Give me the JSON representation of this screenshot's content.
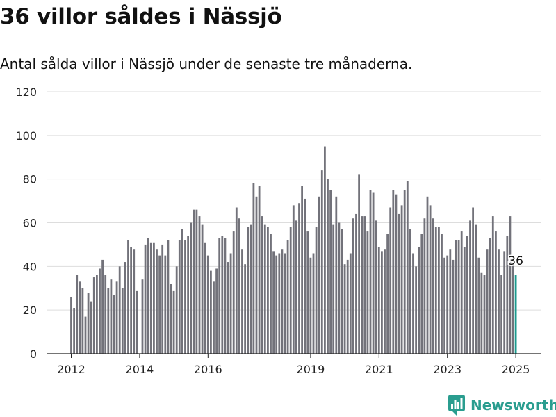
{
  "title": "36 villor såldes i Nässjö",
  "subtitle": "Antal sålda villor i Nässjö under de senaste tre månaderna.",
  "brand": {
    "name": "Newsworthy"
  },
  "colors": {
    "bar": "#72727a",
    "highlight": "#1b9a8e",
    "grid": "#dddddd",
    "brand": "#2a9d8f"
  },
  "chart_data": {
    "type": "bar",
    "ylim": [
      0,
      120
    ],
    "yticks": [
      0,
      20,
      40,
      60,
      80,
      100,
      120
    ],
    "grid": true,
    "xtick_labels": [
      "2012",
      "2014",
      "2016",
      "2019",
      "2021",
      "2023",
      "2025"
    ],
    "start": "2012-01",
    "end": "2025-01",
    "highlight_label": "36",
    "values": [
      26,
      21,
      36,
      33,
      30,
      17,
      28,
      24,
      35,
      36,
      39,
      43,
      36,
      30,
      34,
      27,
      33,
      40,
      30,
      42,
      52,
      49,
      48,
      29,
      0,
      34,
      50,
      53,
      51,
      51,
      48,
      45,
      50,
      45,
      52,
      32,
      29,
      40,
      52,
      57,
      52,
      54,
      60,
      66,
      66,
      63,
      59,
      51,
      45,
      38,
      33,
      39,
      53,
      54,
      53,
      42,
      46,
      56,
      67,
      62,
      48,
      41,
      58,
      59,
      78,
      72,
      77,
      63,
      59,
      58,
      55,
      47,
      45,
      46,
      48,
      46,
      52,
      58,
      68,
      61,
      69,
      77,
      71,
      56,
      44,
      46,
      58,
      72,
      84,
      95,
      80,
      75,
      59,
      72,
      60,
      57,
      41,
      43,
      46,
      62,
      64,
      82,
      63,
      63,
      56,
      75,
      74,
      61,
      49,
      47,
      48,
      55,
      67,
      75,
      73,
      64,
      68,
      75,
      79,
      57,
      46,
      40,
      49,
      55,
      62,
      72,
      68,
      62,
      58,
      58,
      55,
      44,
      45,
      48,
      43,
      52,
      52,
      56,
      49,
      54,
      61,
      67,
      59,
      44,
      37,
      36,
      48,
      53,
      63,
      56,
      48,
      36,
      47,
      54,
      63,
      44,
      36
    ]
  }
}
